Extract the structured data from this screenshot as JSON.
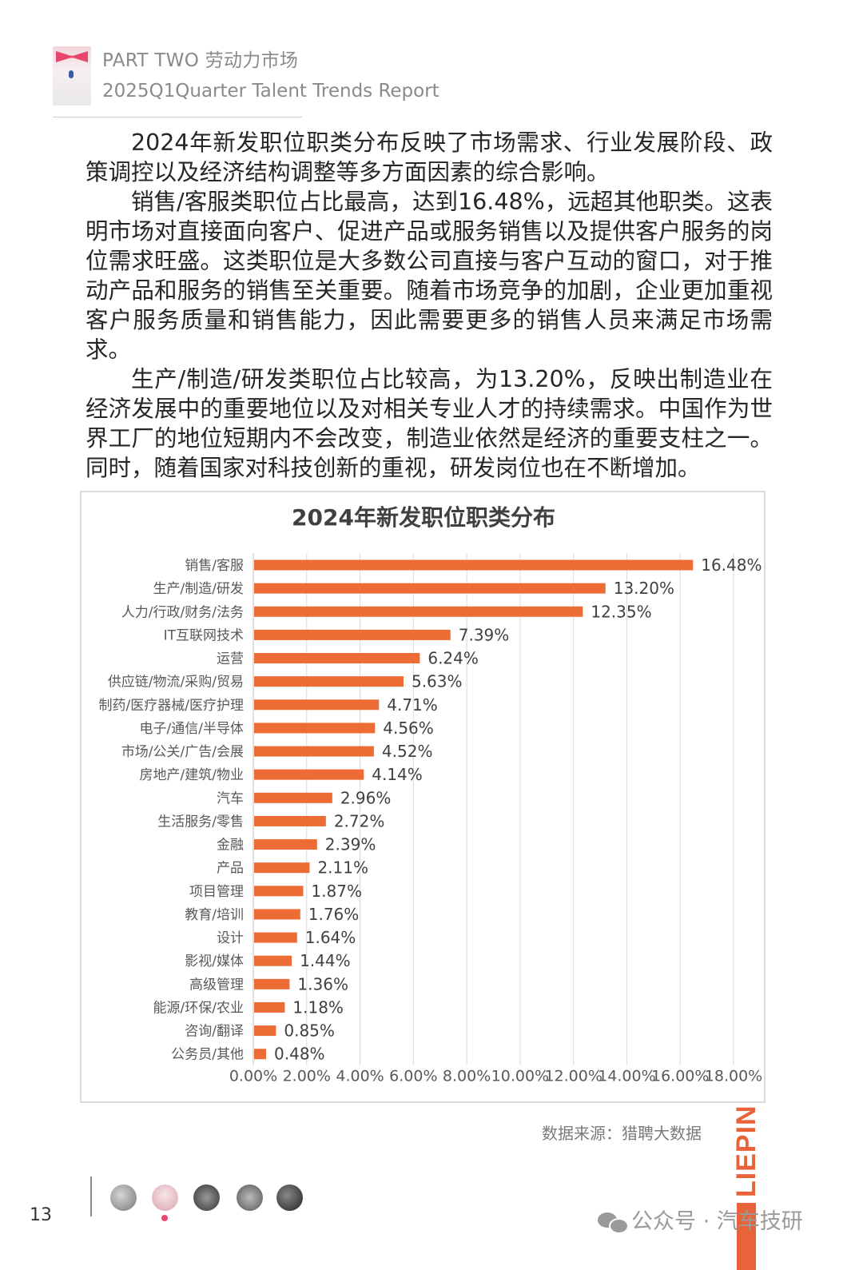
{
  "header": {
    "line1": "PART TWO 劳动力市场",
    "line2": "2025Q1Quarter Talent Trends Report"
  },
  "body": {
    "paragraphs": [
      "2024年新发职位职类分布反映了市场需求、行业发展阶段、政策调控以及经济结构调整等多方面因素的综合影响。",
      "销售/客服类职位占比最高，达到16.48%，远超其他职类。这表明市场对直接面向客户、促进产品或服务销售以及提供客户服务的岗位需求旺盛。这类职位是大多数公司直接与客户互动的窗口，对于推动产品和服务的销售至关重要。随着市场竞争的加剧，企业更加重视客户服务质量和销售能力，因此需要更多的销售人员来满足市场需求。",
      "生产/制造/研发类职位占比较高，为13.20%，反映出制造业在经济发展中的重要地位以及对相关专业人才的持续需求。中国作为世界工厂的地位短期内不会改变，制造业依然是经济的重要支柱之一。同时，随着国家对科技创新的重视，研发岗位也在不断增加。"
    ]
  },
  "chart_data": {
    "type": "bar",
    "orientation": "horizontal",
    "title": "2024年新发职位职类分布",
    "categories": [
      "销售/客服",
      "生产/制造/研发",
      "人力/行政/财务/法务",
      "IT互联网技术",
      "运营",
      "供应链/物流/采购/贸易",
      "制药/医疗器械/医疗护理",
      "电子/通信/半导体",
      "市场/公关/广告/会展",
      "房地产/建筑/物业",
      "汽车",
      "生活服务/零售",
      "金融",
      "产品",
      "项目管理",
      "教育/培训",
      "设计",
      "影视/媒体",
      "高级管理",
      "能源/环保/农业",
      "咨询/翻译",
      "公务员/其他"
    ],
    "values": [
      16.48,
      13.2,
      12.35,
      7.39,
      6.24,
      5.63,
      4.71,
      4.56,
      4.52,
      4.14,
      2.96,
      2.72,
      2.39,
      2.11,
      1.87,
      1.76,
      1.64,
      1.44,
      1.36,
      1.18,
      0.85,
      0.48
    ],
    "value_labels": [
      "16.48%",
      "13.20%",
      "12.35%",
      "7.39%",
      "6.24%",
      "5.63%",
      "4.71%",
      "4.56%",
      "4.52%",
      "4.14%",
      "2.96%",
      "2.72%",
      "2.39%",
      "2.11%",
      "1.87%",
      "1.76%",
      "1.64%",
      "1.44%",
      "1.36%",
      "1.18%",
      "0.85%",
      "0.48%"
    ],
    "xlim": [
      0,
      18
    ],
    "x_ticks": [
      "0.00%",
      "2.00%",
      "4.00%",
      "6.00%",
      "8.00%",
      "10.00%",
      "12.00%",
      "14.00%",
      "16.00%",
      "18.00%"
    ],
    "grid": true,
    "bar_color": "#ED6B35"
  },
  "source": "数据来源：猎聘大数据",
  "brand": "LIEPIN",
  "brand_color": "#E8623A",
  "page_number": "13",
  "watermark": "公众号 · 汽车技研"
}
